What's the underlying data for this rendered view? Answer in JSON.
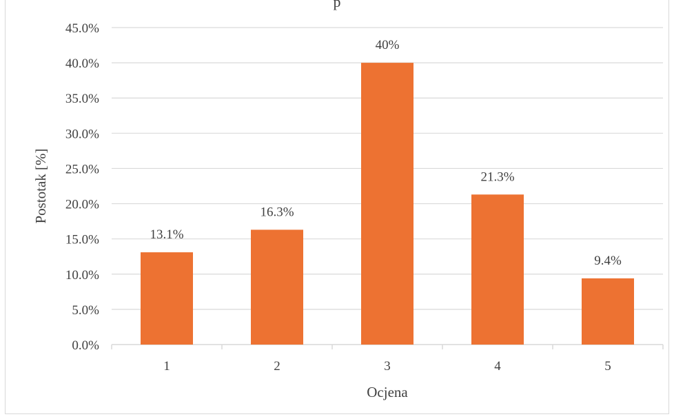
{
  "chart_data": {
    "type": "bar",
    "title": "",
    "xlabel": "Ocjena",
    "ylabel": "Postotak [%]",
    "categories": [
      "1",
      "2",
      "3",
      "4",
      "5"
    ],
    "values": [
      13.1,
      16.3,
      40,
      21.3,
      9.4
    ],
    "data_labels": [
      "13.1%",
      "16.3%",
      "40%",
      "21.3%",
      "9.4%"
    ],
    "yticks": [
      "0.0%",
      "5.0%",
      "10.0%",
      "15.0%",
      "20.0%",
      "25.0%",
      "30.0%",
      "35.0%",
      "40.0%",
      "45.0%"
    ],
    "ylim": [
      0,
      45
    ],
    "grid": true,
    "legend": "none",
    "bar_color": "#ED7232",
    "grid_color": "#D9D9D9",
    "text_color": "#404040"
  },
  "top_cut_text": "p"
}
